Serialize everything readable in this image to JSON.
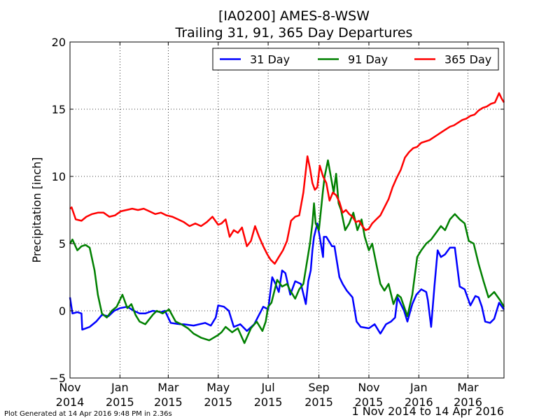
{
  "title": "[IA0200] AMES-8-WSW",
  "subtitle": "Trailing 31, 91, 365 Day Departures",
  "footer_left": "Plot Generated at 14 Apr 2016 9:48 PM in 2.36s",
  "footer_right": "1 Nov 2014 to 14 Apr 2016",
  "chart_data": {
    "type": "line",
    "title": "[IA0200] AMES-8-WSW",
    "subtitle": "Trailing 31, 91, 365 Day Departures",
    "xlabel": "",
    "ylabel": "Precipitation [inch]",
    "xlim": [
      "2014-11-01",
      "2016-04-14"
    ],
    "ylim": [
      -5,
      20
    ],
    "yticks": [
      -5,
      0,
      5,
      10,
      15,
      20
    ],
    "xticks": [
      {
        "date": "2014-11-01",
        "line1": "Nov",
        "line2": "2014"
      },
      {
        "date": "2015-01-01",
        "line1": "Jan",
        "line2": "2015"
      },
      {
        "date": "2015-03-01",
        "line1": "Mar",
        "line2": "2015"
      },
      {
        "date": "2015-05-01",
        "line1": "May",
        "line2": "2015"
      },
      {
        "date": "2015-07-01",
        "line1": "Jul",
        "line2": "2015"
      },
      {
        "date": "2015-09-01",
        "line1": "Sep",
        "line2": "2015"
      },
      {
        "date": "2015-11-01",
        "line1": "Nov",
        "line2": "2015"
      },
      {
        "date": "2016-01-01",
        "line1": "Jan",
        "line2": "2016"
      },
      {
        "date": "2016-03-01",
        "line1": "Mar",
        "line2": "2016"
      }
    ],
    "grid": true,
    "legend_position": "top-right",
    "series": [
      {
        "name": "31 Day",
        "color": "#0000ff",
        "x": [
          "2014-11-01",
          "2014-11-04",
          "2014-11-10",
          "2014-11-15",
          "2014-11-16",
          "2014-11-25",
          "2014-12-03",
          "2014-12-10",
          "2014-12-18",
          "2014-12-25",
          "2015-01-01",
          "2015-01-10",
          "2015-01-18",
          "2015-01-25",
          "2015-02-01",
          "2015-02-10",
          "2015-02-20",
          "2015-02-25",
          "2015-03-04",
          "2015-03-15",
          "2015-03-20",
          "2015-04-01",
          "2015-04-15",
          "2015-04-22",
          "2015-04-28",
          "2015-05-01",
          "2015-05-08",
          "2015-05-14",
          "2015-05-20",
          "2015-05-28",
          "2015-06-05",
          "2015-06-14",
          "2015-06-19",
          "2015-06-25",
          "2015-07-01",
          "2015-07-06",
          "2015-07-10",
          "2015-07-14",
          "2015-07-18",
          "2015-07-22",
          "2015-07-28",
          "2015-08-03",
          "2015-08-10",
          "2015-08-16",
          "2015-08-19",
          "2015-08-22",
          "2015-08-24",
          "2015-08-26",
          "2015-08-30",
          "2015-09-02",
          "2015-09-06",
          "2015-09-07",
          "2015-09-10",
          "2015-09-17",
          "2015-09-20",
          "2015-09-26",
          "2015-09-30",
          "2015-10-05",
          "2015-10-12",
          "2015-10-17",
          "2015-10-22",
          "2015-11-01",
          "2015-11-08",
          "2015-11-15",
          "2015-11-22",
          "2015-11-28",
          "2015-12-03",
          "2015-12-06",
          "2015-12-10",
          "2015-12-14",
          "2015-12-18",
          "2015-12-24",
          "2015-12-29",
          "2016-01-04",
          "2016-01-10",
          "2016-01-12",
          "2016-01-16",
          "2016-01-20",
          "2016-01-24",
          "2016-01-28",
          "2016-02-02",
          "2016-02-08",
          "2016-02-14",
          "2016-02-20",
          "2016-02-26",
          "2016-03-04",
          "2016-03-10",
          "2016-03-14",
          "2016-03-18",
          "2016-03-22",
          "2016-03-28",
          "2016-04-02",
          "2016-04-08",
          "2016-04-14"
        ],
        "y": [
          1.0,
          -0.2,
          -0.1,
          -0.2,
          -1.4,
          -1.2,
          -0.8,
          -0.3,
          -0.4,
          0.0,
          0.2,
          0.3,
          0.0,
          -0.2,
          -0.2,
          0.0,
          -0.1,
          0.0,
          -0.9,
          -1.0,
          -1.0,
          -1.1,
          -0.9,
          -1.1,
          -0.5,
          0.4,
          0.3,
          0.0,
          -1.2,
          -1.0,
          -1.5,
          -1.0,
          -0.4,
          0.3,
          0.1,
          2.5,
          2.0,
          1.4,
          3.0,
          2.8,
          1.2,
          2.2,
          2.0,
          0.5,
          2.2,
          3.0,
          4.5,
          5.5,
          6.5,
          5.5,
          4.0,
          5.5,
          5.5,
          4.8,
          4.8,
          2.5,
          2.0,
          1.5,
          1.0,
          -0.8,
          -1.2,
          -1.3,
          -1.0,
          -1.7,
          -1.0,
          -0.8,
          -0.5,
          1.0,
          0.5,
          0.0,
          -0.8,
          0.5,
          1.2,
          1.6,
          1.4,
          0.8,
          -1.2,
          1.8,
          4.5,
          4.0,
          4.2,
          4.7,
          4.7,
          1.8,
          1.6,
          0.4,
          1.1,
          1.0,
          0.3,
          -0.8,
          -0.9,
          -0.6,
          0.6,
          0.1
        ]
      },
      {
        "name": "91 Day",
        "color": "#008000",
        "x": [
          "2014-11-01",
          "2014-11-04",
          "2014-11-10",
          "2014-11-15",
          "2014-11-20",
          "2014-11-25",
          "2014-12-01",
          "2014-12-05",
          "2014-12-10",
          "2014-12-16",
          "2014-12-22",
          "2014-12-28",
          "2015-01-04",
          "2015-01-10",
          "2015-01-15",
          "2015-01-20",
          "2015-01-25",
          "2015-02-01",
          "2015-02-10",
          "2015-02-15",
          "2015-02-22",
          "2015-03-02",
          "2015-03-10",
          "2015-03-17",
          "2015-03-25",
          "2015-04-01",
          "2015-04-10",
          "2015-04-20",
          "2015-05-01",
          "2015-05-05",
          "2015-05-10",
          "2015-05-18",
          "2015-05-25",
          "2015-06-02",
          "2015-06-10",
          "2015-06-17",
          "2015-06-24",
          "2015-06-28",
          "2015-07-01",
          "2015-07-05",
          "2015-07-12",
          "2015-07-18",
          "2015-07-24",
          "2015-07-28",
          "2015-08-03",
          "2015-08-08",
          "2015-08-13",
          "2015-08-17",
          "2015-08-21",
          "2015-08-24",
          "2015-08-26",
          "2015-08-28",
          "2015-09-01",
          "2015-09-06",
          "2015-09-08",
          "2015-09-12",
          "2015-09-17",
          "2015-09-19",
          "2015-09-22",
          "2015-09-25",
          "2015-09-28",
          "2015-10-03",
          "2015-10-08",
          "2015-10-13",
          "2015-10-18",
          "2015-10-23",
          "2015-10-27",
          "2015-11-01",
          "2015-11-05",
          "2015-11-10",
          "2015-11-15",
          "2015-11-20",
          "2015-11-25",
          "2015-12-01",
          "2015-12-06",
          "2015-12-10",
          "2015-12-14",
          "2015-12-18",
          "2015-12-24",
          "2015-12-30",
          "2016-01-04",
          "2016-01-10",
          "2016-01-16",
          "2016-01-22",
          "2016-01-28",
          "2016-02-02",
          "2016-02-08",
          "2016-02-14",
          "2016-02-20",
          "2016-02-26",
          "2016-03-02",
          "2016-03-08",
          "2016-03-14",
          "2016-03-20",
          "2016-03-26",
          "2016-04-02",
          "2016-04-09",
          "2016-04-14"
        ],
        "y": [
          5.0,
          5.3,
          4.5,
          4.8,
          4.9,
          4.7,
          3.0,
          1.2,
          -0.2,
          -0.5,
          0.0,
          0.3,
          1.2,
          0.2,
          0.5,
          -0.3,
          -0.8,
          -1.0,
          -0.3,
          0.0,
          -0.2,
          0.1,
          -0.8,
          -1.0,
          -1.3,
          -1.7,
          -2.0,
          -2.2,
          -1.8,
          -1.6,
          -1.2,
          -1.6,
          -1.3,
          -2.4,
          -1.3,
          -0.8,
          -1.5,
          -0.8,
          0.3,
          0.6,
          2.3,
          1.8,
          2.0,
          1.5,
          0.9,
          1.6,
          2.0,
          3.5,
          5.0,
          6.5,
          8.0,
          6.5,
          6.0,
          9.0,
          10.0,
          11.2,
          9.5,
          8.8,
          10.2,
          8.0,
          7.5,
          6.0,
          6.5,
          7.3,
          6.0,
          6.8,
          5.5,
          4.5,
          5.0,
          3.5,
          2.0,
          1.5,
          2.0,
          0.5,
          1.2,
          1.0,
          0.3,
          -0.4,
          1.2,
          4.0,
          4.5,
          5.0,
          5.3,
          5.8,
          6.3,
          6.0,
          6.8,
          7.2,
          6.8,
          6.5,
          5.2,
          5.0,
          3.5,
          2.2,
          1.0,
          1.4,
          0.8,
          0.3
        ]
      },
      {
        "name": "365 Day",
        "color": "#ff0000",
        "x": [
          "2014-11-01",
          "2014-11-03",
          "2014-11-08",
          "2014-11-15",
          "2014-11-21",
          "2014-11-28",
          "2014-12-05",
          "2014-12-12",
          "2014-12-19",
          "2014-12-26",
          "2015-01-02",
          "2015-01-09",
          "2015-01-16",
          "2015-01-23",
          "2015-01-30",
          "2015-02-06",
          "2015-02-13",
          "2015-02-20",
          "2015-02-27",
          "2015-03-06",
          "2015-03-13",
          "2015-03-20",
          "2015-03-27",
          "2015-04-03",
          "2015-04-10",
          "2015-04-17",
          "2015-04-24",
          "2015-05-01",
          "2015-05-05",
          "2015-05-10",
          "2015-05-15",
          "2015-05-20",
          "2015-05-25",
          "2015-05-30",
          "2015-06-05",
          "2015-06-10",
          "2015-06-15",
          "2015-06-20",
          "2015-06-25",
          "2015-06-30",
          "2015-07-04",
          "2015-07-09",
          "2015-07-14",
          "2015-07-19",
          "2015-07-24",
          "2015-07-29",
          "2015-08-03",
          "2015-08-08",
          "2015-08-13",
          "2015-08-18",
          "2015-08-21",
          "2015-08-24",
          "2015-08-27",
          "2015-08-30",
          "2015-09-02",
          "2015-09-06",
          "2015-09-10",
          "2015-09-14",
          "2015-09-18",
          "2015-09-22",
          "2015-09-26",
          "2015-09-30",
          "2015-10-04",
          "2015-10-08",
          "2015-10-12",
          "2015-10-16",
          "2015-10-20",
          "2015-10-24",
          "2015-10-28",
          "2015-11-01",
          "2015-11-05",
          "2015-11-10",
          "2015-11-15",
          "2015-11-20",
          "2015-11-25",
          "2015-11-30",
          "2015-12-05",
          "2015-12-10",
          "2015-12-15",
          "2015-12-20",
          "2015-12-25",
          "2015-12-30",
          "2016-01-04",
          "2016-01-09",
          "2016-01-14",
          "2016-01-19",
          "2016-01-24",
          "2016-01-29",
          "2016-02-03",
          "2016-02-08",
          "2016-02-13",
          "2016-02-18",
          "2016-02-23",
          "2016-02-28",
          "2016-03-04",
          "2016-03-09",
          "2016-03-14",
          "2016-03-19",
          "2016-03-24",
          "2016-03-29",
          "2016-04-03",
          "2016-04-08",
          "2016-04-11",
          "2016-04-14"
        ],
        "y": [
          7.6,
          7.7,
          6.8,
          6.7,
          7.0,
          7.2,
          7.3,
          7.3,
          7.0,
          7.1,
          7.4,
          7.5,
          7.6,
          7.5,
          7.6,
          7.4,
          7.2,
          7.3,
          7.1,
          7.0,
          6.8,
          6.6,
          6.3,
          6.5,
          6.3,
          6.6,
          7.0,
          6.4,
          6.5,
          6.8,
          5.5,
          6.0,
          5.8,
          6.2,
          4.8,
          5.2,
          6.3,
          5.5,
          4.8,
          4.2,
          3.8,
          3.5,
          4.0,
          4.5,
          5.2,
          6.7,
          7.0,
          7.1,
          8.8,
          11.5,
          10.6,
          9.5,
          9.0,
          9.2,
          10.8,
          10.0,
          9.5,
          8.2,
          8.8,
          8.6,
          8.1,
          7.3,
          7.5,
          7.2,
          7.0,
          6.6,
          6.7,
          6.3,
          6.0,
          6.1,
          6.5,
          6.8,
          7.1,
          7.7,
          8.3,
          9.2,
          9.9,
          10.5,
          11.4,
          11.8,
          12.1,
          12.2,
          12.5,
          12.6,
          12.7,
          12.9,
          13.1,
          13.3,
          13.5,
          13.7,
          13.8,
          14.0,
          14.2,
          14.3,
          14.5,
          14.6,
          14.9,
          15.1,
          15.2,
          15.4,
          15.5,
          16.2,
          15.8,
          15.5
        ]
      }
    ]
  }
}
